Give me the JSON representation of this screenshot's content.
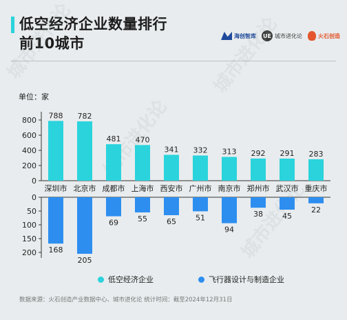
{
  "header": {
    "title_line1": "低空经济企业数量排行",
    "title_line2": "前10城市",
    "logos": [
      {
        "name": "海创智库",
        "icon": "brand-mark-icon"
      },
      {
        "name": "城市进化论",
        "icon": "ue-logo-icon"
      },
      {
        "name": "火石创造",
        "icon": "flame-logo-icon"
      }
    ]
  },
  "unit_label": "单位：家",
  "watermark": "城市进化论",
  "colors": {
    "series_top": "#2bd3dc",
    "series_bottom": "#2d8ef0",
    "accent": "#2bd3dc"
  },
  "chart_data": {
    "type": "bar",
    "categories": [
      "深圳市",
      "北京市",
      "成都市",
      "上海市",
      "西安市",
      "广州市",
      "南京市",
      "郑州市",
      "武汉市",
      "重庆市"
    ],
    "series": [
      {
        "name": "低空经济企业",
        "values": [
          788,
          782,
          481,
          470,
          341,
          332,
          313,
          292,
          291,
          283
        ]
      },
      {
        "name": "飞行器设计与制造企业",
        "values": [
          168,
          205,
          69,
          55,
          65,
          51,
          94,
          38,
          45,
          22
        ]
      }
    ],
    "top_axis": {
      "ticks": [
        0,
        200,
        400,
        600,
        800
      ],
      "range": [
        0,
        800
      ]
    },
    "bottom_axis": {
      "ticks": [
        0,
        50,
        100,
        150,
        200
      ],
      "range": [
        0,
        200
      ],
      "direction": "downward"
    },
    "ylabel": "单位：家",
    "legend_position": "bottom"
  },
  "source_note": "数据来源：火石创造产业数据中心、城市进化论 统计时间：截至2024年12月31日"
}
